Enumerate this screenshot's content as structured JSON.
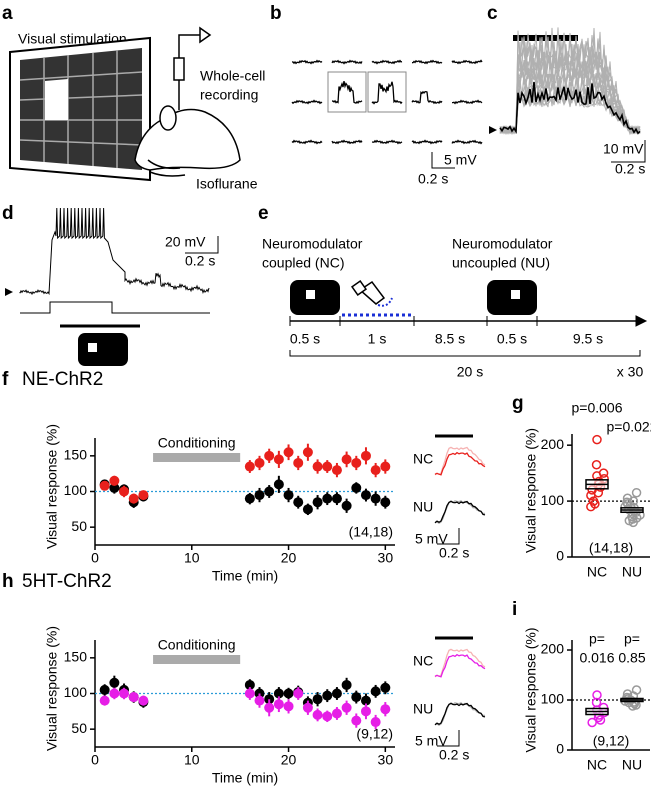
{
  "panels": {
    "a": {
      "label": "a",
      "stimulus": "Visual stimulation",
      "recording": [
        "Whole-cell",
        "recording"
      ],
      "anesthesia": "Isoflurane"
    },
    "b": {
      "label": "b",
      "scale_y": "5 mV",
      "scale_x": "0.2 s"
    },
    "c": {
      "label": "c",
      "scale_y": "10 mV",
      "scale_x": "0.2 s"
    },
    "d": {
      "label": "d",
      "scale_y": "20 mV",
      "scale_x": "0.2 s"
    },
    "e": {
      "label": "e",
      "coupled": [
        "Neuromodulator",
        "coupled (NC)"
      ],
      "uncoupled": [
        "Neuromodulator",
        "uncoupled (NU)"
      ],
      "durations": [
        "0.5 s",
        "1 s",
        "8.5 s",
        "0.5 s",
        "9.5 s"
      ],
      "total": "20 s",
      "repeats": "x 30"
    }
  },
  "chart_data": [
    {
      "type": "scatter",
      "label": "f",
      "title": "NE-ChR2",
      "title_color": "#e8201c",
      "x_label": "Time (min)",
      "y_label": "Visual response (%)",
      "xlim": [
        0,
        31
      ],
      "xticks": [
        0,
        10,
        20,
        30
      ],
      "ylim": [
        25,
        175
      ],
      "yticks": [
        50,
        100,
        150
      ],
      "reference_line": 100,
      "span": {
        "label": "Conditioning",
        "x": [
          6,
          15
        ]
      },
      "annotation": "(14,18)",
      "scale_y": "5 mV",
      "scale_x": "0.2 s",
      "series": [
        {
          "name": "NU",
          "color": "#000000",
          "x": [
            1,
            2,
            3,
            4,
            5,
            16,
            17,
            18,
            19,
            20,
            21,
            22,
            23,
            24,
            25,
            26,
            27,
            28,
            29,
            30
          ],
          "values": [
            110,
            105,
            103,
            85,
            93,
            90,
            95,
            100,
            110,
            95,
            85,
            75,
            85,
            90,
            90,
            80,
            105,
            95,
            90,
            85
          ],
          "errors": [
            6,
            8,
            7,
            8,
            7,
            8,
            10,
            9,
            12,
            10,
            9,
            8,
            10,
            9,
            9,
            10,
            8,
            9,
            10,
            9
          ]
        },
        {
          "name": "NC",
          "color": "#e8201c",
          "x": [
            1,
            2,
            3,
            4,
            5,
            16,
            17,
            18,
            19,
            20,
            21,
            22,
            23,
            24,
            25,
            26,
            27,
            28,
            29,
            30
          ],
          "values": [
            108,
            115,
            100,
            90,
            95,
            135,
            140,
            150,
            145,
            155,
            140,
            155,
            135,
            135,
            130,
            145,
            140,
            150,
            130,
            135
          ],
          "errors": [
            6,
            7,
            8,
            7,
            6,
            9,
            10,
            10,
            12,
            11,
            10,
            12,
            10,
            9,
            10,
            11,
            10,
            12,
            10,
            10
          ]
        }
      ]
    },
    {
      "type": "strip",
      "label": "g",
      "y_label": "Visual response (%)",
      "ylim": [
        0,
        220
      ],
      "yticks": [
        0,
        100,
        200
      ],
      "reference_line": 100,
      "annotation": "(14,18)",
      "series": [
        {
          "name": "NC",
          "color": "#e8201c",
          "text_color": "#e8201c",
          "p_label": [
            "p=0.006"
          ],
          "values": [
            210,
            165,
            150,
            145,
            140,
            135,
            130,
            125,
            120,
            115,
            110,
            100,
            95,
            90
          ],
          "mean": 130,
          "sem": 8
        },
        {
          "name": "NU",
          "color": "#999999",
          "text_color": "#000000",
          "p_label": [
            "p=0.022"
          ],
          "values": [
            115,
            105,
            100,
            98,
            95,
            92,
            90,
            88,
            85,
            82,
            80,
            78,
            75,
            72,
            70,
            68,
            65,
            62
          ],
          "mean": 84,
          "sem": 4
        }
      ]
    },
    {
      "type": "scatter",
      "label": "h",
      "title": "5HT-ChR2",
      "title_color": "#e61ee6",
      "x_label": "Time (min)",
      "y_label": "Visual response (%)",
      "xlim": [
        0,
        31
      ],
      "xticks": [
        0,
        10,
        20,
        30
      ],
      "ylim": [
        25,
        175
      ],
      "yticks": [
        50,
        100,
        150
      ],
      "reference_line": 100,
      "span": {
        "label": "Conditioning",
        "x": [
          6,
          15
        ]
      },
      "annotation": "(9,12)",
      "scale_y": "5 mV",
      "scale_x": "0.2 s",
      "series": [
        {
          "name": "NU",
          "color": "#000000",
          "x": [
            1,
            2,
            3,
            4,
            5,
            16,
            17,
            18,
            19,
            20,
            21,
            22,
            23,
            24,
            25,
            26,
            27,
            28,
            29,
            30
          ],
          "values": [
            105,
            115,
            105,
            95,
            88,
            112,
            100,
            92,
            100,
            100,
            102,
            87,
            92,
            97,
            100,
            112,
            95,
            90,
            103,
            108
          ],
          "errors": [
            8,
            10,
            9,
            8,
            8,
            8,
            9,
            10,
            9,
            8,
            9,
            9,
            10,
            9,
            9,
            10,
            9,
            10,
            9,
            9
          ]
        },
        {
          "name": "NC",
          "color": "#e61ee6",
          "x": [
            1,
            2,
            3,
            4,
            5,
            16,
            17,
            18,
            19,
            20,
            21,
            22,
            23,
            24,
            25,
            26,
            27,
            28,
            29,
            30
          ],
          "values": [
            90,
            100,
            100,
            95,
            90,
            100,
            90,
            80,
            85,
            82,
            100,
            80,
            70,
            68,
            72,
            80,
            62,
            75,
            60,
            78
          ],
          "errors": [
            7,
            8,
            8,
            7,
            7,
            9,
            10,
            12,
            11,
            10,
            9,
            10,
            9,
            8,
            9,
            10,
            10,
            11,
            10,
            10
          ]
        }
      ]
    },
    {
      "type": "strip",
      "label": "i",
      "y_label": "Visual response (%)",
      "ylim": [
        0,
        220
      ],
      "yticks": [
        0,
        100,
        200
      ],
      "reference_line": 100,
      "annotation": "(9,12)",
      "series": [
        {
          "name": "NC",
          "color": "#e61ee6",
          "text_color": "#e61ee6",
          "p_label": [
            "p=",
            "0.016"
          ],
          "values": [
            110,
            95,
            85,
            80,
            75,
            70,
            65,
            60,
            55
          ],
          "mean": 77,
          "sem": 6
        },
        {
          "name": "NU",
          "color": "#999999",
          "text_color": "#000000",
          "p_label": [
            "p=",
            "0.85"
          ],
          "values": [
            120,
            112,
            108,
            105,
            102,
            100,
            98,
            96,
            95,
            93,
            90,
            88
          ],
          "mean": 100,
          "sem": 3
        }
      ]
    }
  ]
}
